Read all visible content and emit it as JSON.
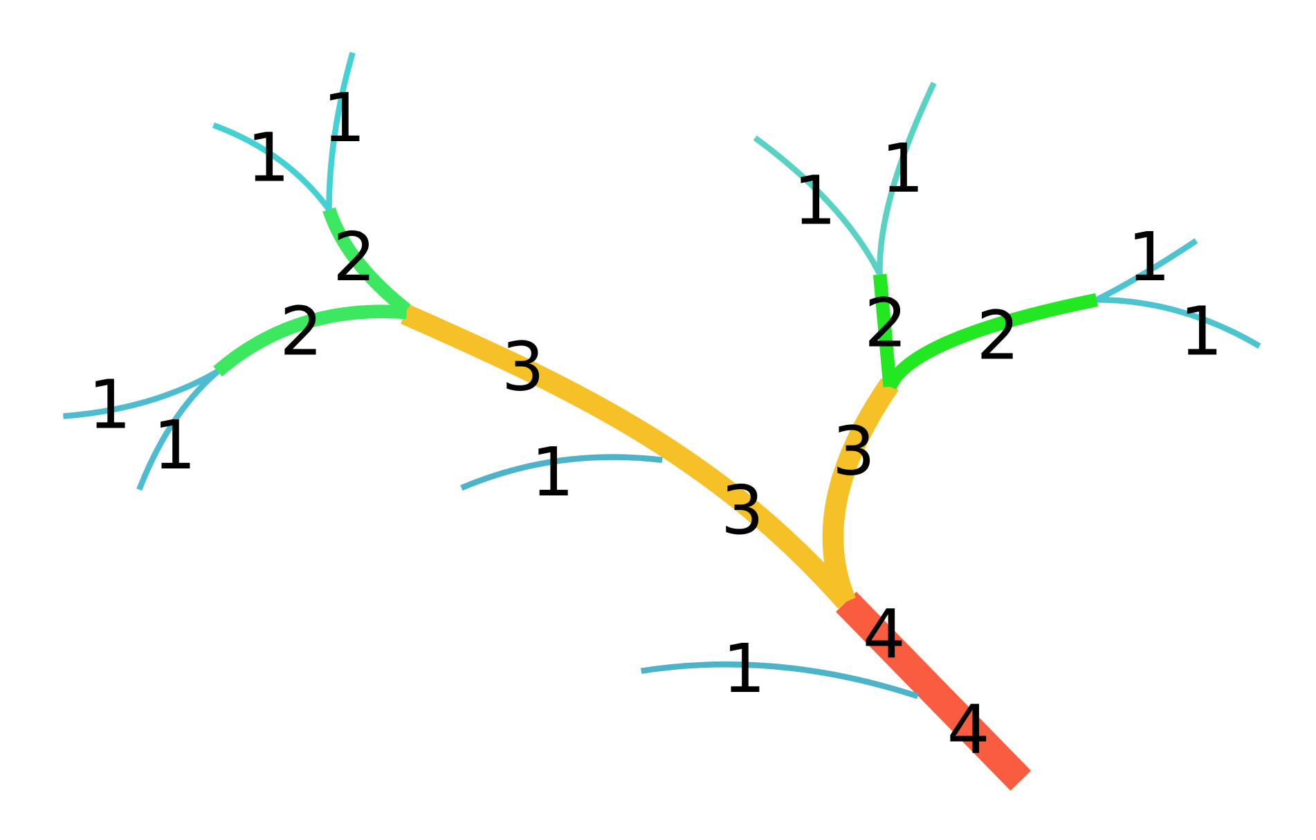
{
  "segments": [
    {
      "order": 4,
      "color": "#f95c3e"
    },
    {
      "order": 1,
      "color": "#4cb3c8"
    },
    {
      "order": 3,
      "color": "#f5c127"
    },
    {
      "order": 1,
      "color": "#4cb3c8"
    },
    {
      "order": 3,
      "color": "#f5c127"
    },
    {
      "order": 2,
      "color": "#3ce860"
    },
    {
      "order": 2,
      "color": "#3ce860"
    },
    {
      "order": 1,
      "color": "#43d1d3"
    },
    {
      "order": 1,
      "color": "#43d1d3"
    },
    {
      "order": 1,
      "color": "#4cbcce"
    },
    {
      "order": 1,
      "color": "#4cbcce"
    },
    {
      "order": 2,
      "color": "#22e822"
    },
    {
      "order": 2,
      "color": "#22e822"
    },
    {
      "order": 1,
      "color": "#58d2c3"
    },
    {
      "order": 1,
      "color": "#58d2c3"
    },
    {
      "order": 1,
      "color": "#4cc4d0"
    },
    {
      "order": 1,
      "color": "#4cc4d0"
    }
  ]
}
